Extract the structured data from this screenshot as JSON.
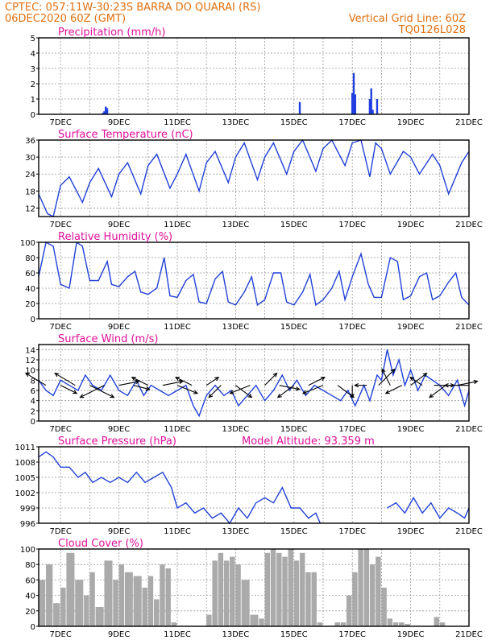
{
  "header": {
    "line1": "CPTEC:  057:11W-30:23S  BARRA DO QUARAI (RS)",
    "line2": "06DEC2020 60Z (GMT)",
    "grid_note": "Vertical Grid Line: 60Z",
    "model_code": "TQ0126L028"
  },
  "colors": {
    "header": "#e07010",
    "title": "#e0109a",
    "line": "#2040d8",
    "bar": "#1f3fe0",
    "cloud": "#aaaaaa"
  },
  "chart_data": [
    {
      "id": "precip",
      "type": "bar",
      "title": "Precipitation  (mm/h)",
      "ylim": [
        0,
        5
      ],
      "yticks": [
        0,
        1,
        2,
        3,
        4,
        5
      ],
      "xlim": [
        6.25,
        21
      ],
      "xticks": [
        "7DEC",
        "9DEC",
        "11DEC",
        "13DEC",
        "15DEC",
        "17DEC",
        "19DEC",
        "21DEC"
      ],
      "x": [
        8.45,
        8.5,
        8.55,
        8.6,
        15.2,
        17.0,
        17.05,
        17.1,
        17.6,
        17.65,
        17.7,
        17.85
      ],
      "values": [
        0.1,
        0.2,
        0.5,
        0.4,
        0.8,
        1.4,
        2.7,
        1.3,
        1.0,
        1.7,
        0.3,
        1.0
      ]
    },
    {
      "id": "temp",
      "type": "line",
      "title": "Surface Temperature  (nC)",
      "ylim": [
        9,
        36
      ],
      "yticks": [
        12,
        18,
        24,
        30,
        36
      ],
      "xlim": [
        6.25,
        21
      ],
      "xticks": [
        "7DEC",
        "9DEC",
        "11DEC",
        "13DEC",
        "15DEC",
        "17DEC",
        "19DEC",
        "21DEC"
      ],
      "x": [
        6.25,
        6.55,
        6.75,
        7.0,
        7.3,
        7.75,
        8.0,
        8.3,
        8.75,
        9.0,
        9.3,
        9.75,
        10.0,
        10.3,
        10.75,
        11.0,
        11.3,
        11.75,
        12.0,
        12.3,
        12.75,
        13.0,
        13.3,
        13.75,
        14.0,
        14.3,
        14.75,
        15.0,
        15.3,
        15.75,
        16.0,
        16.3,
        16.75,
        17.0,
        17.3,
        17.6,
        17.8,
        18.0,
        18.3,
        18.75,
        19.0,
        19.3,
        19.75,
        20.0,
        20.3,
        20.75,
        21.0
      ],
      "values": [
        17,
        10,
        9,
        20,
        23,
        14,
        21,
        26,
        16,
        24,
        28,
        17,
        27,
        31,
        19,
        24,
        31,
        18,
        28,
        32,
        21,
        30,
        35,
        22,
        30,
        35,
        24,
        32,
        36,
        25,
        33,
        36,
        27,
        35,
        36,
        23,
        35,
        33,
        24,
        32,
        30,
        24,
        31,
        27,
        17,
        28,
        32
      ]
    },
    {
      "id": "rh",
      "type": "line",
      "title": "Relative Humidity  (%)",
      "ylim": [
        0,
        100
      ],
      "yticks": [
        0,
        20,
        40,
        60,
        80,
        100
      ],
      "xlim": [
        6.25,
        21
      ],
      "xticks": [
        "7DEC",
        "9DEC",
        "11DEC",
        "13DEC",
        "15DEC",
        "17DEC",
        "19DEC",
        "21DEC"
      ],
      "x": [
        6.25,
        6.5,
        6.75,
        7.0,
        7.3,
        7.55,
        7.75,
        8.0,
        8.3,
        8.6,
        8.75,
        9.0,
        9.3,
        9.55,
        9.75,
        10.0,
        10.3,
        10.55,
        10.75,
        11.0,
        11.3,
        11.55,
        11.75,
        12.0,
        12.3,
        12.55,
        12.75,
        13.0,
        13.3,
        13.55,
        13.75,
        14.0,
        14.3,
        14.55,
        14.75,
        15.0,
        15.3,
        15.55,
        15.75,
        16.0,
        16.3,
        16.55,
        16.75,
        17.0,
        17.3,
        17.55,
        17.75,
        18.0,
        18.3,
        18.55,
        18.75,
        19.0,
        19.3,
        19.55,
        19.75,
        20.0,
        20.3,
        20.55,
        20.75,
        21.0
      ],
      "values": [
        55,
        100,
        95,
        45,
        40,
        100,
        95,
        50,
        50,
        75,
        45,
        42,
        55,
        62,
        35,
        32,
        40,
        80,
        30,
        28,
        50,
        58,
        22,
        20,
        52,
        62,
        22,
        18,
        35,
        55,
        18,
        25,
        60,
        60,
        22,
        18,
        35,
        58,
        18,
        25,
        40,
        62,
        25,
        55,
        85,
        45,
        28,
        28,
        80,
        75,
        25,
        30,
        55,
        60,
        25,
        30,
        48,
        60,
        28,
        18
      ]
    },
    {
      "id": "wind",
      "type": "line",
      "title": "Surface Wind  (m/s)",
      "ylim": [
        0,
        15
      ],
      "yticks": [
        0,
        2,
        4,
        6,
        8,
        10,
        12,
        14
      ],
      "xlim": [
        6.25,
        21
      ],
      "xticks": [
        "7DEC",
        "9DEC",
        "11DEC",
        "13DEC",
        "15DEC",
        "17DEC",
        "19DEC",
        "21DEC"
      ],
      "x": [
        6.25,
        6.5,
        6.75,
        7.0,
        7.3,
        7.6,
        7.85,
        8.1,
        8.4,
        8.7,
        9.0,
        9.3,
        9.6,
        9.85,
        10.1,
        10.4,
        10.7,
        11.0,
        11.3,
        11.55,
        11.75,
        12.0,
        12.3,
        12.6,
        12.85,
        13.1,
        13.4,
        13.7,
        14.0,
        14.3,
        14.6,
        14.85,
        15.1,
        15.4,
        15.7,
        16.0,
        16.3,
        16.6,
        16.85,
        17.1,
        17.4,
        17.6,
        17.85,
        18.0,
        18.2,
        18.4,
        18.6,
        18.8,
        19.0,
        19.25,
        19.5,
        19.75,
        20.0,
        20.3,
        20.6,
        20.85,
        21.0
      ],
      "values": [
        8,
        6,
        5,
        8,
        7,
        6,
        9,
        7,
        6,
        9,
        6,
        5,
        8,
        5,
        7,
        6,
        5,
        6,
        7,
        3,
        1,
        5,
        7,
        5,
        6,
        3,
        5,
        7,
        4,
        6,
        9,
        6,
        8,
        5,
        7,
        6,
        5,
        4,
        6,
        3,
        7,
        4,
        9,
        8,
        14,
        9,
        12,
        7,
        10,
        6,
        9,
        8,
        7,
        5,
        8,
        3,
        6
      ]
    },
    {
      "id": "pres",
      "type": "line",
      "title": "Surface Pressure  (hPa)",
      "annotation": "Model Altitude: 93.359  m",
      "ylim": [
        996,
        1011
      ],
      "yticks": [
        996,
        999,
        1002,
        1005,
        1008,
        1011
      ],
      "xlim": [
        6.25,
        21
      ],
      "xticks": [
        "7DEC",
        "9DEC",
        "11DEC",
        "13DEC",
        "15DEC",
        "17DEC",
        "19DEC",
        "21DEC"
      ],
      "x": [
        6.25,
        6.5,
        6.75,
        7.0,
        7.3,
        7.6,
        7.85,
        8.1,
        8.4,
        8.7,
        9.0,
        9.3,
        9.6,
        9.9,
        10.2,
        10.5,
        10.8,
        11.0,
        11.3,
        11.6,
        11.9,
        12.2,
        12.5,
        12.8,
        13.1,
        13.4,
        13.7,
        14.0,
        14.3,
        14.6,
        14.9,
        15.2,
        15.5,
        15.75,
        15.9,
        18.2,
        18.5,
        18.8,
        19.1,
        19.4,
        19.7,
        20.0,
        20.3,
        20.6,
        20.85,
        21.0
      ],
      "values": [
        1009,
        1010,
        1009,
        1007,
        1007,
        1005,
        1006,
        1004,
        1005,
        1004,
        1005,
        1004,
        1006,
        1004,
        1005,
        1006,
        1003,
        999,
        1000,
        998,
        999,
        997,
        998,
        996,
        999,
        997,
        1000,
        1001,
        1000,
        1003,
        999,
        999,
        997,
        998,
        996,
        999,
        1000,
        998,
        1001,
        998,
        1000,
        997,
        999,
        998,
        997,
        999
      ]
    },
    {
      "id": "cloud",
      "type": "area",
      "title": "Cloud Cover  (%)",
      "ylim": [
        0,
        100
      ],
      "yticks": [
        0,
        20,
        40,
        60,
        80,
        100
      ],
      "xlim": [
        6.25,
        21
      ],
      "xticks": [
        "7DEC",
        "9DEC",
        "11DEC",
        "13DEC",
        "15DEC",
        "17DEC",
        "19DEC",
        "21DEC"
      ],
      "x": [
        6.25,
        6.5,
        6.75,
        7.0,
        7.2,
        7.5,
        7.8,
        8.0,
        8.2,
        8.5,
        8.8,
        9.0,
        9.2,
        9.5,
        9.8,
        10.0,
        10.2,
        10.4,
        10.6,
        10.8,
        11.0,
        11.3,
        11.6,
        12.0,
        12.2,
        12.4,
        12.6,
        12.8,
        13.0,
        13.2,
        13.5,
        13.8,
        14.0,
        14.2,
        14.4,
        14.6,
        14.8,
        15.0,
        15.2,
        15.4,
        15.6,
        15.8,
        16.0,
        16.2,
        16.4,
        16.6,
        16.8,
        17.0,
        17.2,
        17.4,
        17.6,
        17.8,
        18.0,
        18.2,
        18.4,
        18.6,
        18.8,
        19.0,
        19.2,
        19.4,
        19.6,
        19.8,
        20.0,
        20.2,
        20.4,
        20.6,
        20.8,
        21.0
      ],
      "values": [
        60,
        80,
        30,
        50,
        95,
        60,
        40,
        70,
        25,
        85,
        60,
        80,
        70,
        65,
        50,
        65,
        35,
        80,
        75,
        5,
        0,
        0,
        0,
        15,
        85,
        95,
        85,
        90,
        80,
        60,
        15,
        10,
        95,
        100,
        95,
        90,
        100,
        85,
        95,
        70,
        70,
        5,
        0,
        0,
        5,
        5,
        40,
        70,
        100,
        100,
        80,
        90,
        50,
        10,
        5,
        5,
        3,
        0,
        0,
        0,
        0,
        12,
        5,
        0,
        0,
        0,
        0,
        20
      ]
    }
  ],
  "wind_vectors": {
    "x": [
      6.5,
      7.0,
      7.5,
      8.0,
      8.5,
      9.0,
      9.5,
      10.0,
      10.5,
      11.0,
      11.5,
      12.0,
      12.5,
      13.0,
      13.5,
      14.0,
      14.5,
      15.0,
      15.5,
      16.0,
      16.5,
      17.0,
      17.5,
      17.9,
      18.3,
      18.7,
      19.0,
      19.4,
      19.8,
      20.2,
      20.6,
      21.0
    ],
    "u": [
      -5,
      4,
      -5,
      6,
      -6,
      5,
      4,
      -4,
      5,
      5,
      -4,
      3,
      -3,
      4,
      -5,
      3,
      5,
      -4,
      4,
      -5,
      4,
      0,
      -3,
      4,
      -2,
      -4,
      4,
      -3,
      5,
      -4,
      5,
      -6
    ],
    "v": [
      3,
      -2,
      3,
      -3,
      -3,
      1,
      -1,
      2,
      1,
      -2,
      2,
      2,
      -3,
      -3,
      -2,
      3,
      -1,
      -3,
      2,
      -2,
      -3,
      -3,
      0,
      4,
      4,
      -2,
      3,
      2,
      0,
      -3,
      1,
      0
    ]
  }
}
